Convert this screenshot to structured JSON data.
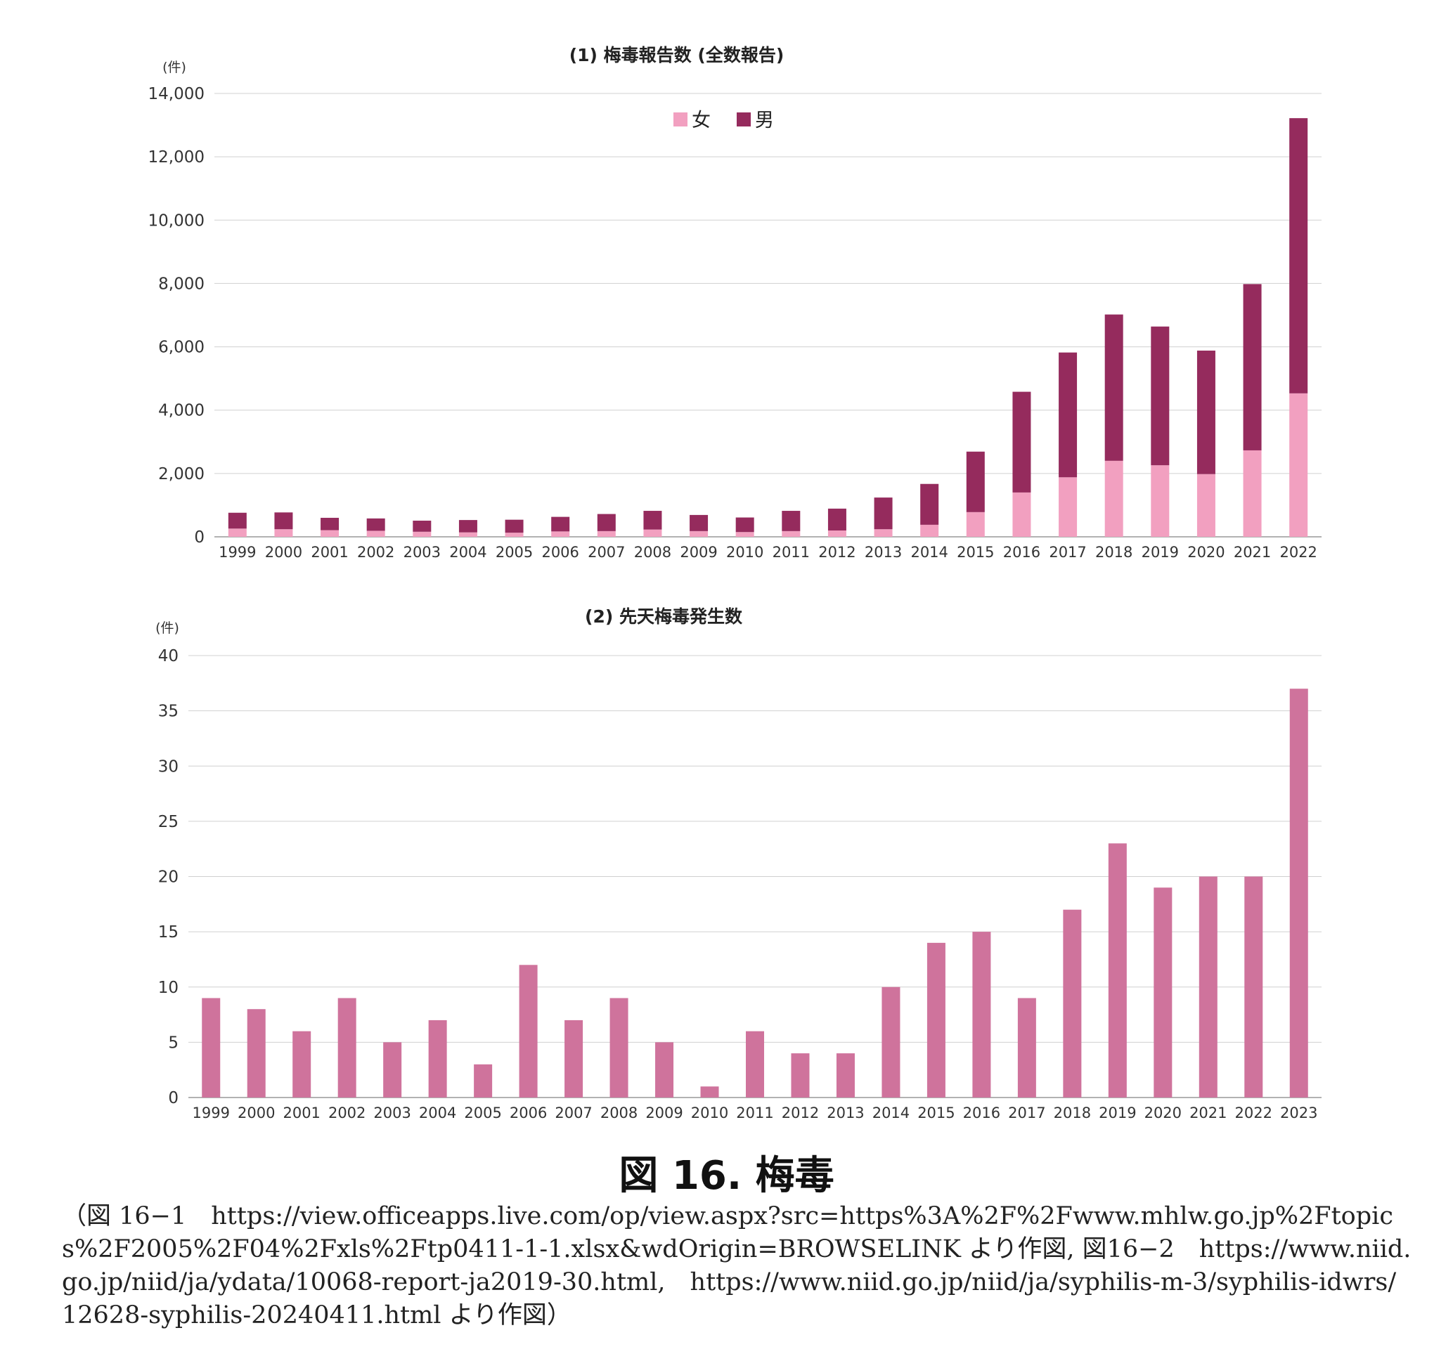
{
  "chart_data": [
    {
      "type": "bar",
      "stacked": true,
      "title": "(1) 梅毒報告数 (全数報告)",
      "unit": "(件)",
      "categories": [
        "1999",
        "2000",
        "2001",
        "2002",
        "2003",
        "2004",
        "2005",
        "2006",
        "2007",
        "2008",
        "2009",
        "2010",
        "2011",
        "2012",
        "2013",
        "2014",
        "2015",
        "2016",
        "2017",
        "2018",
        "2019",
        "2020",
        "2021",
        "2022"
      ],
      "series": [
        {
          "name": "女",
          "color": "#f2a0c0",
          "values": [
            260,
            240,
            210,
            190,
            160,
            140,
            130,
            170,
            180,
            230,
            180,
            150,
            180,
            200,
            240,
            380,
            780,
            1400,
            1880,
            2400,
            2260,
            1980,
            2730,
            4530
          ]
        },
        {
          "name": "男",
          "color": "#952b5d",
          "values": [
            500,
            530,
            390,
            390,
            350,
            390,
            410,
            460,
            540,
            590,
            510,
            460,
            640,
            690,
            1000,
            1290,
            1910,
            3180,
            3940,
            4620,
            4380,
            3900,
            5250,
            8690
          ]
        }
      ],
      "ylim": [
        0,
        14000
      ],
      "yticks": [
        0,
        2000,
        4000,
        6000,
        8000,
        10000,
        12000,
        14000
      ],
      "ytick_labels": [
        "0",
        "2,000",
        "4,000",
        "6,000",
        "8,000",
        "10,000",
        "12,000",
        "14,000"
      ],
      "grid": true,
      "legend": "top-center"
    },
    {
      "type": "bar",
      "title": "(2) 先天梅毒発生数",
      "unit": "(件)",
      "categories": [
        "1999",
        "2000",
        "2001",
        "2002",
        "2003",
        "2004",
        "2005",
        "2006",
        "2007",
        "2008",
        "2009",
        "2010",
        "2011",
        "2012",
        "2013",
        "2014",
        "2015",
        "2016",
        "2017",
        "2018",
        "2019",
        "2020",
        "2021",
        "2022",
        "2023"
      ],
      "color": "#cf739c",
      "values": [
        9,
        8,
        6,
        9,
        5,
        7,
        3,
        12,
        7,
        9,
        5,
        1,
        6,
        4,
        4,
        10,
        14,
        15,
        9,
        17,
        23,
        19,
        20,
        20,
        37
      ],
      "ylim": [
        0,
        40
      ],
      "yticks": [
        0,
        5,
        10,
        15,
        20,
        25,
        30,
        35,
        40
      ],
      "grid": true
    }
  ],
  "figure": {
    "caption": "図 16.  梅毒",
    "source": "（図 16−1　https://view.officeapps.live.com/op/view.aspx?src=https%3A%2F%2Fwww.mhlw.go.jp%2Ftopics%2F2005%2F04%2Fxls%2Ftp0411-1-1.xlsx&wdOrigin=BROWSELINK より作図, 図16−2　https://www.niid.go.jp/niid/ja/ydata/10068-report-ja2019-30.html,　https://www.niid.go.jp/niid/ja/syphilis-m-3/syphilis-idwrs/12628-syphilis-20240411.html より作図）"
  }
}
